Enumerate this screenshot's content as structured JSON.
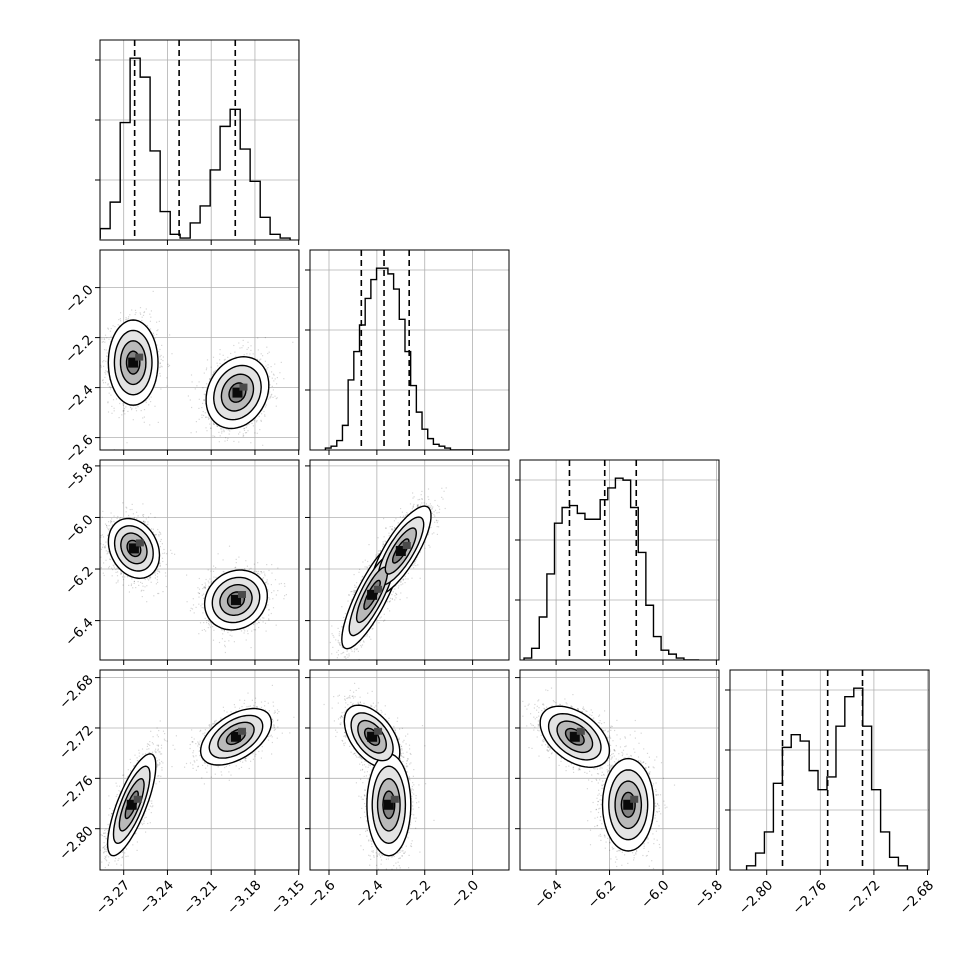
{
  "chart_data": {
    "type": "corner",
    "grid": true,
    "n_params": 4,
    "parameters": [
      {
        "ticks": [
          -3.27,
          -3.24,
          -3.21,
          -3.18,
          -3.15
        ],
        "tick_labels": [
          "−3.27",
          "−3.24",
          "−3.21",
          "−3.18",
          "−3.15"
        ],
        "quantiles": [
          -3.2625,
          -3.232,
          -3.1935
        ],
        "hist": {
          "edges": [
            -3.293,
            -3.2861,
            -3.2793,
            -3.2724,
            -3.2656,
            -3.2587,
            -3.2519,
            -3.245,
            -3.2381,
            -3.2313,
            -3.2244,
            -3.2176,
            -3.2107,
            -3.2039,
            -3.197,
            -3.1901,
            -3.1833,
            -3.1764,
            -3.1696,
            -3.1627,
            -3.1559
          ],
          "counts": [
            1,
            6,
            20,
            62,
            96,
            86,
            47,
            15,
            3,
            1,
            9,
            18,
            37,
            60,
            69,
            48,
            31,
            12,
            3,
            1
          ]
        }
      },
      {
        "ticks": [
          -2.6,
          -2.4,
          -2.2,
          -2.0
        ],
        "tick_labels": [
          "−2.6",
          "−2.4",
          "−2.2",
          "−2.0"
        ],
        "quantiles": [
          -2.465,
          -2.37,
          -2.265
        ],
        "hist": {
          "edges": [
            -2.615,
            -2.5913,
            -2.5675,
            -2.5438,
            -2.52,
            -2.4963,
            -2.4725,
            -2.4488,
            -2.425,
            -2.4013,
            -2.3775,
            -2.3538,
            -2.33,
            -2.3063,
            -2.2825,
            -2.2588,
            -2.235,
            -2.2113,
            -2.1875,
            -2.1638,
            -2.14,
            -2.1163,
            -2.0925,
            -2.0688,
            -2.045,
            -2.0213,
            -1.9975
          ],
          "counts": [
            1,
            2,
            5,
            13,
            37,
            52,
            66,
            80,
            90,
            96,
            96,
            93,
            85,
            69,
            52,
            34,
            20,
            11,
            6,
            3,
            2,
            1,
            0,
            0,
            0,
            0
          ]
        }
      },
      {
        "ticks": [
          -6.4,
          -6.2,
          -6.0,
          -5.8
        ],
        "tick_labels": [
          "−6.4",
          "−6.2",
          "−6.0",
          "−5.8"
        ],
        "quantiles": [
          -6.35,
          -6.218,
          -6.1
        ],
        "hist": {
          "edges": [
            -6.52,
            -6.4915,
            -6.463,
            -6.4345,
            -6.406,
            -6.3775,
            -6.349,
            -6.3205,
            -6.292,
            -6.2635,
            -6.235,
            -6.2065,
            -6.178,
            -6.1495,
            -6.121,
            -6.0925,
            -6.064,
            -6.0355,
            -6.007,
            -5.9785,
            -5.95,
            -5.9215,
            -5.893,
            -5.8645
          ],
          "counts": [
            1,
            6,
            22,
            44,
            70,
            78,
            79,
            75,
            72,
            72,
            82,
            88,
            93,
            92,
            78,
            55,
            28,
            12,
            5,
            3,
            1,
            0,
            0
          ]
        }
      },
      {
        "ticks": [
          -2.8,
          -2.76,
          -2.72,
          -2.68
        ],
        "tick_labels": [
          "−2.80",
          "−2.76",
          "−2.72",
          "−2.68"
        ],
        "quantiles": [
          -2.7882,
          -2.7545,
          -2.7285
        ],
        "hist": {
          "edges": [
            -2.815,
            -2.8083,
            -2.8017,
            -2.795,
            -2.7883,
            -2.7817,
            -2.775,
            -2.7683,
            -2.7617,
            -2.755,
            -2.7483,
            -2.7417,
            -2.735,
            -2.7283,
            -2.7217,
            -2.715,
            -2.7083,
            -2.7017,
            -2.695
          ],
          "counts": [
            2,
            8,
            18,
            41,
            58,
            64,
            61,
            47,
            38,
            44,
            68,
            82,
            86,
            68,
            38,
            18,
            6,
            2
          ]
        }
      }
    ],
    "densities": [
      {
        "row": 1,
        "col": 0,
        "points": 3200,
        "blobs": [
          {
            "weight": 0.5,
            "mean": [
              -3.2635,
              -2.3
            ],
            "cov": [
              [
                6.9e-05,
                0
              ],
              [
                0,
                0.0069
              ]
            ]
          },
          {
            "weight": 0.5,
            "mean": [
              -3.192,
              -2.42
            ],
            "cov": [
              [
                0.00011,
                0.00015
              ],
              [
                0.00015,
                0.0049
              ]
            ]
          }
        ]
      },
      {
        "row": 2,
        "col": 0,
        "points": 3200,
        "blobs": [
          {
            "weight": 0.5,
            "mean": [
              -3.263,
              -6.12
            ],
            "cov": [
              [
                7.3e-05,
                -0.00011
              ],
              [
                -0.00011,
                0.0032
              ]
            ]
          },
          {
            "weight": 0.5,
            "mean": [
              -3.193,
              -6.32
            ],
            "cov": [
              [
                0.00011,
                8e-05
              ],
              [
                8e-05,
                0.0032
              ]
            ]
          }
        ]
      },
      {
        "row": 2,
        "col": 1,
        "points": 3600,
        "blobs": [
          {
            "weight": 0.5,
            "mean": [
              -2.42,
              -6.3
            ],
            "cov": [
              [
                0.0038,
                0.0052
              ],
              [
                0.0052,
                0.0104
              ]
            ]
          },
          {
            "weight": 0.5,
            "mean": [
              -2.3,
              -6.13
            ],
            "cov": [
              [
                0.0038,
                0.0041
              ],
              [
                0.0041,
                0.0072
              ]
            ]
          }
        ]
      },
      {
        "row": 3,
        "col": 0,
        "points": 3200,
        "blobs": [
          {
            "weight": 0.5,
            "mean": [
              -3.2645,
              -2.781
            ],
            "cov": [
              [
                6.5e-05,
                0.000122
              ],
              [
                0.000122,
                0.00039
              ]
            ]
          },
          {
            "weight": 0.5,
            "mean": [
              -3.193,
              -2.727
            ],
            "cov": [
              [
                0.00014,
                6.5e-05
              ],
              [
                6.5e-05,
                0.00012
              ]
            ]
          }
        ]
      },
      {
        "row": 3,
        "col": 1,
        "points": 3600,
        "blobs": [
          {
            "weight": 0.5,
            "mean": [
              -2.42,
              -2.727
            ],
            "cov": [
              [
                0.0032,
                -0.00034
              ],
              [
                -0.00034,
                0.00015
              ]
            ]
          },
          {
            "weight": 0.5,
            "mean": [
              -2.35,
              -2.781
            ],
            "cov": [
              [
                0.002,
                0.0
              ],
              [
                0.0,
                0.00039
              ]
            ]
          }
        ]
      },
      {
        "row": 3,
        "col": 2,
        "points": 3600,
        "blobs": [
          {
            "weight": 0.5,
            "mean": [
              -6.33,
              -2.727
            ],
            "cov": [
              [
                0.004,
                -0.00034
              ],
              [
                -0.00034,
                0.00014
              ]
            ]
          },
          {
            "weight": 0.5,
            "mean": [
              -6.13,
              -2.781
            ],
            "cov": [
              [
                0.0022,
                0.0
              ],
              [
                0.0,
                0.00032
              ]
            ]
          }
        ]
      }
    ]
  }
}
